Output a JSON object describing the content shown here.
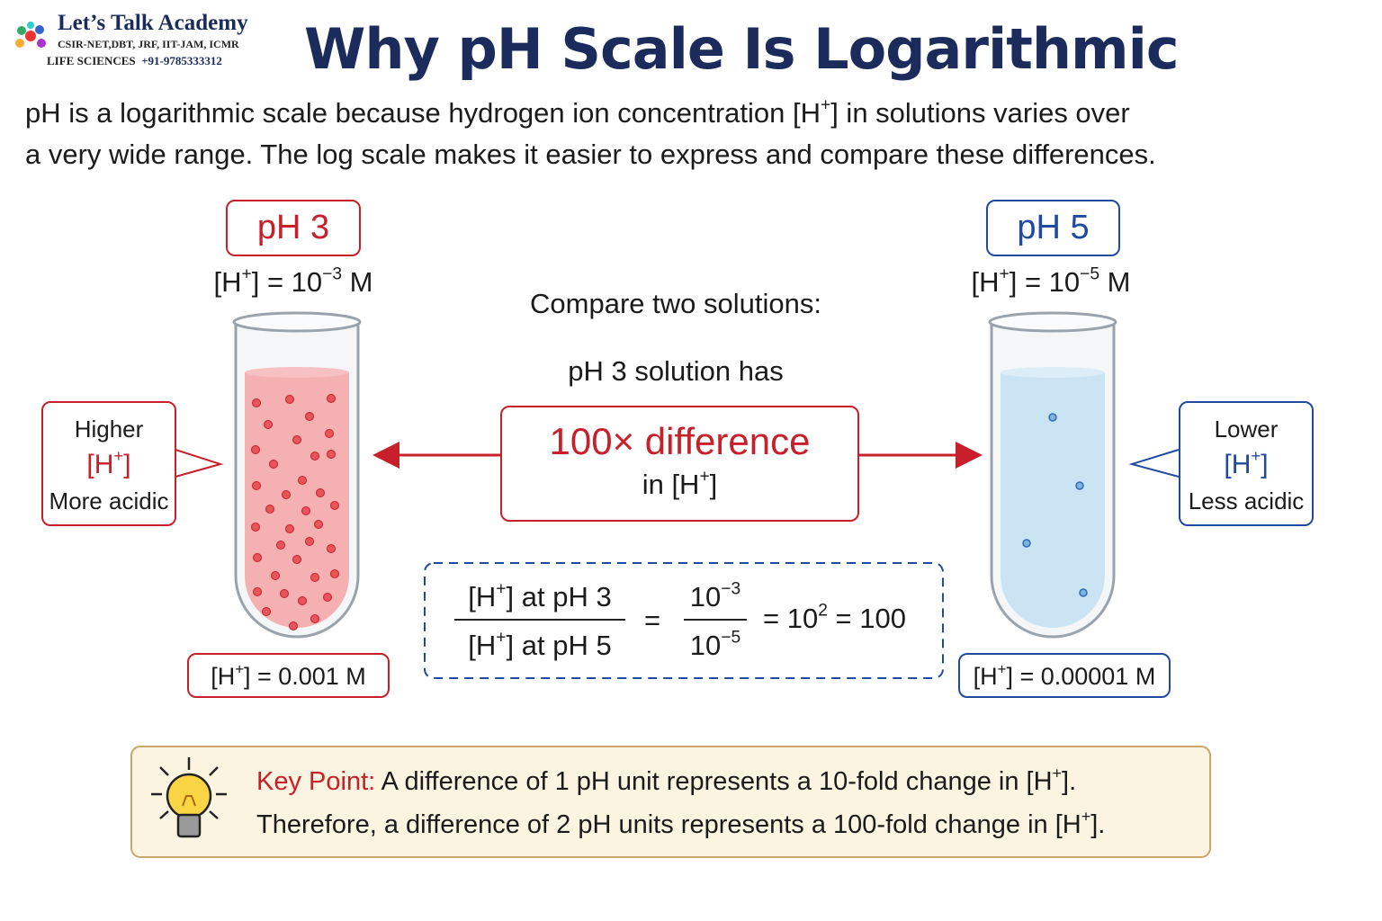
{
  "logo": {
    "name": "Let’s Talk Academy",
    "line1": "CSIR-NET,DBT, JRF, IIT-JAM, ICMR",
    "line2": "LIFE SCIENCES",
    "phone": "+91-9785333312"
  },
  "header": {
    "title": "Why pH Scale Is Logarithmic"
  },
  "intro": {
    "lines": [
      [
        "pH is a logarithmic scale because hydrogen ion concentration [H",
        {
          "sup": "+"
        },
        "] in solutions varies over"
      ],
      [
        "a very wide range. The log scale makes it easier to express and compare these differences."
      ]
    ]
  },
  "left": {
    "label": "pH 3",
    "concentration": [
      "[H",
      {
        "sup": "+"
      },
      "] = 10",
      {
        "sup": "−3"
      },
      " M"
    ],
    "callout": {
      "top": "Higher",
      "ion": [
        "[H",
        {
          "sup": "+"
        },
        "]"
      ],
      "bottom": "More acidic"
    },
    "value": [
      "[H",
      {
        "sup": "+"
      },
      "] = 0.001 M"
    ]
  },
  "right": {
    "label": "pH 5",
    "concentration": [
      "[H",
      {
        "sup": "+"
      },
      "] = 10",
      {
        "sup": "−5"
      },
      " M"
    ],
    "callout": {
      "top": "Lower",
      "ion": [
        "[H",
        {
          "sup": "+"
        },
        "]"
      ],
      "bottom": "Less acidic"
    },
    "value": [
      "[H",
      {
        "sup": "+"
      },
      "] = 0.00001 M"
    ]
  },
  "center": {
    "compare": "Compare two solutions:",
    "has": "pH 3 solution has",
    "difference": "100× difference",
    "in": [
      "in [H",
      {
        "sup": "+"
      },
      "]"
    ]
  },
  "formula": {
    "numerator": [
      "[H",
      {
        "sup": "+"
      },
      "] at pH 3"
    ],
    "denominator": [
      "[H",
      {
        "sup": "+"
      },
      "] at pH 5"
    ],
    "equals": "=",
    "numerator2": [
      "10",
      {
        "sup": "−3"
      }
    ],
    "denominator2": [
      "10",
      {
        "sup": "−5"
      }
    ],
    "result": [
      "= 10",
      {
        "sup": "2"
      },
      " = 100"
    ]
  },
  "key_point": {
    "label": "Key Point:",
    "line1": [
      " A difference of 1 pH unit represents a 10-fold change in [H",
      {
        "sup": "+"
      },
      "]."
    ],
    "line2": [
      "Therefore, a difference of 2 pH units represents a 100-fold change in [H",
      {
        "sup": "+"
      },
      "]."
    ]
  }
}
